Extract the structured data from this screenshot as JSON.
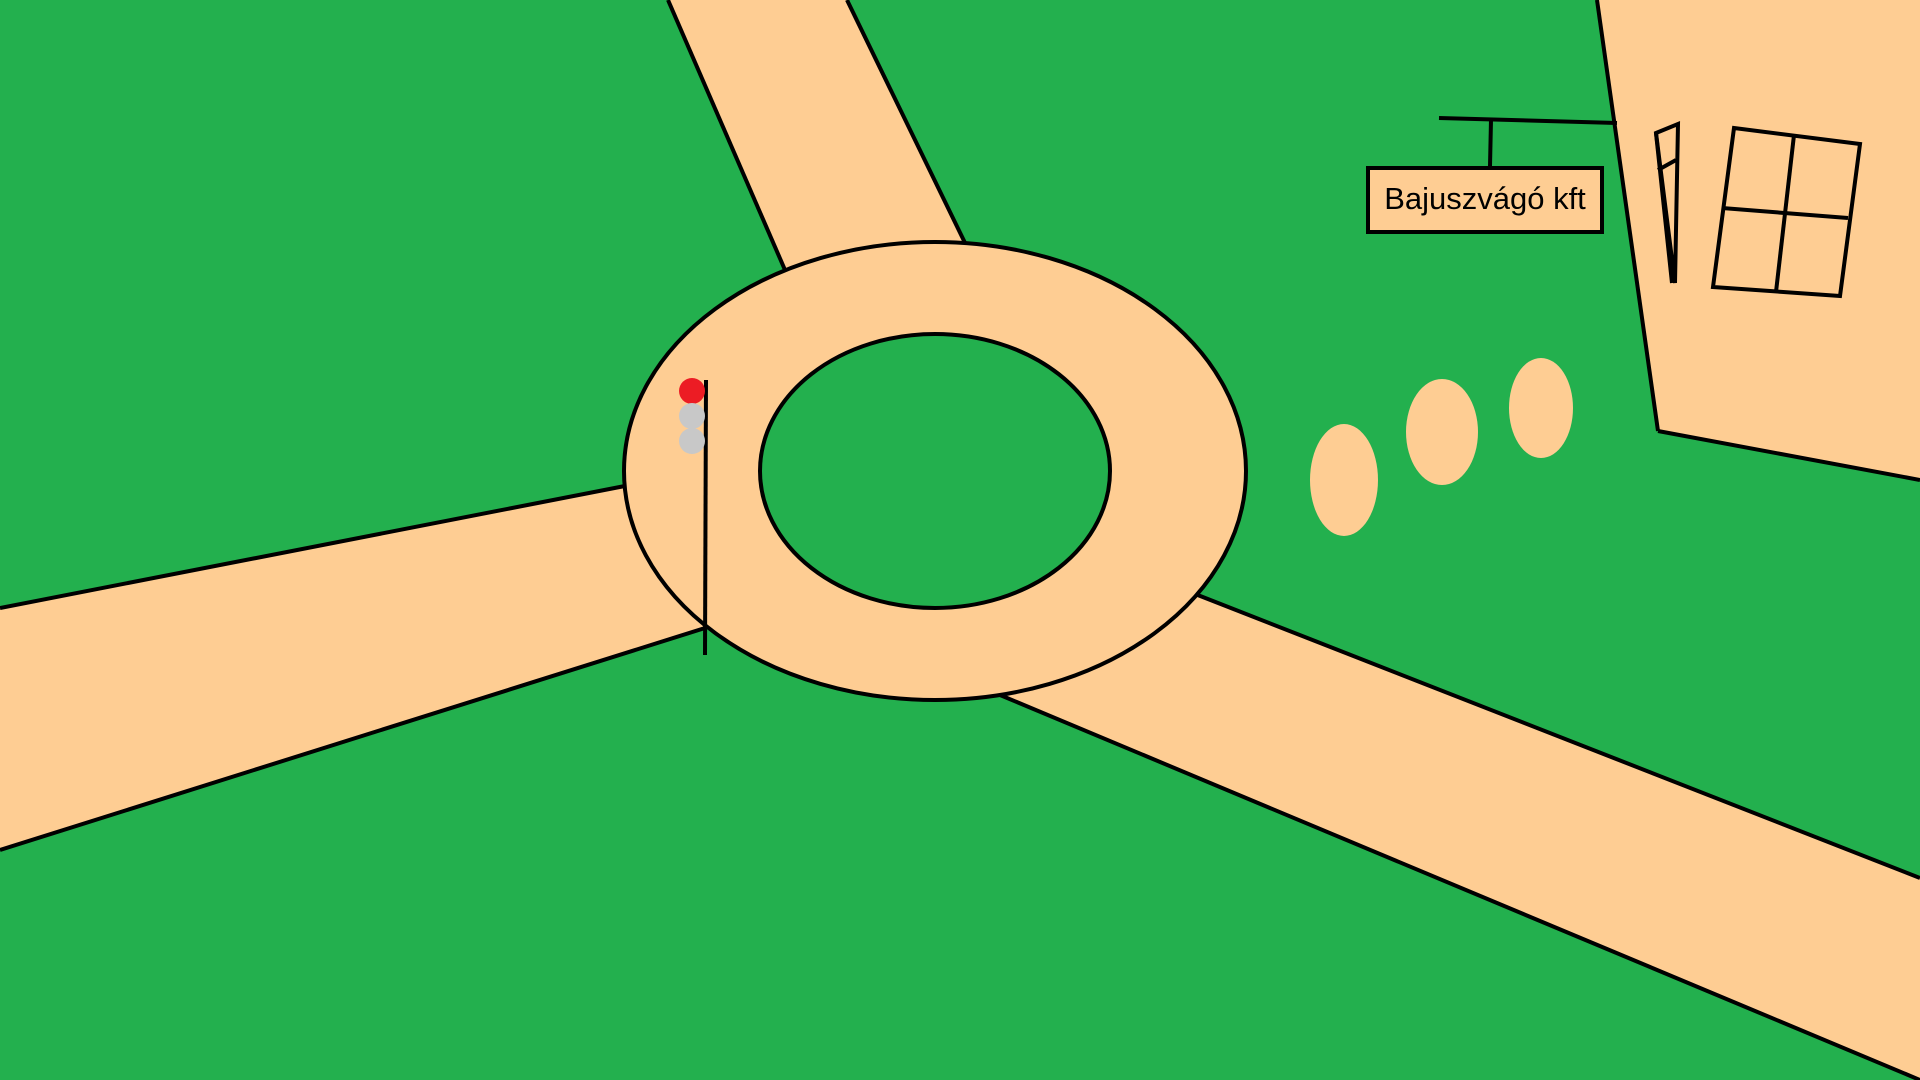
{
  "colors": {
    "grass": "#23b04e",
    "road": "#fecd93",
    "outline": "#000000",
    "light_on": "#ec1c24",
    "light_off": "#c8c8c8"
  },
  "traffic_light": {
    "active": "red",
    "lamps": [
      "red",
      "off",
      "off"
    ]
  },
  "shop_sign": {
    "text": "Bajuszvágó kft"
  }
}
